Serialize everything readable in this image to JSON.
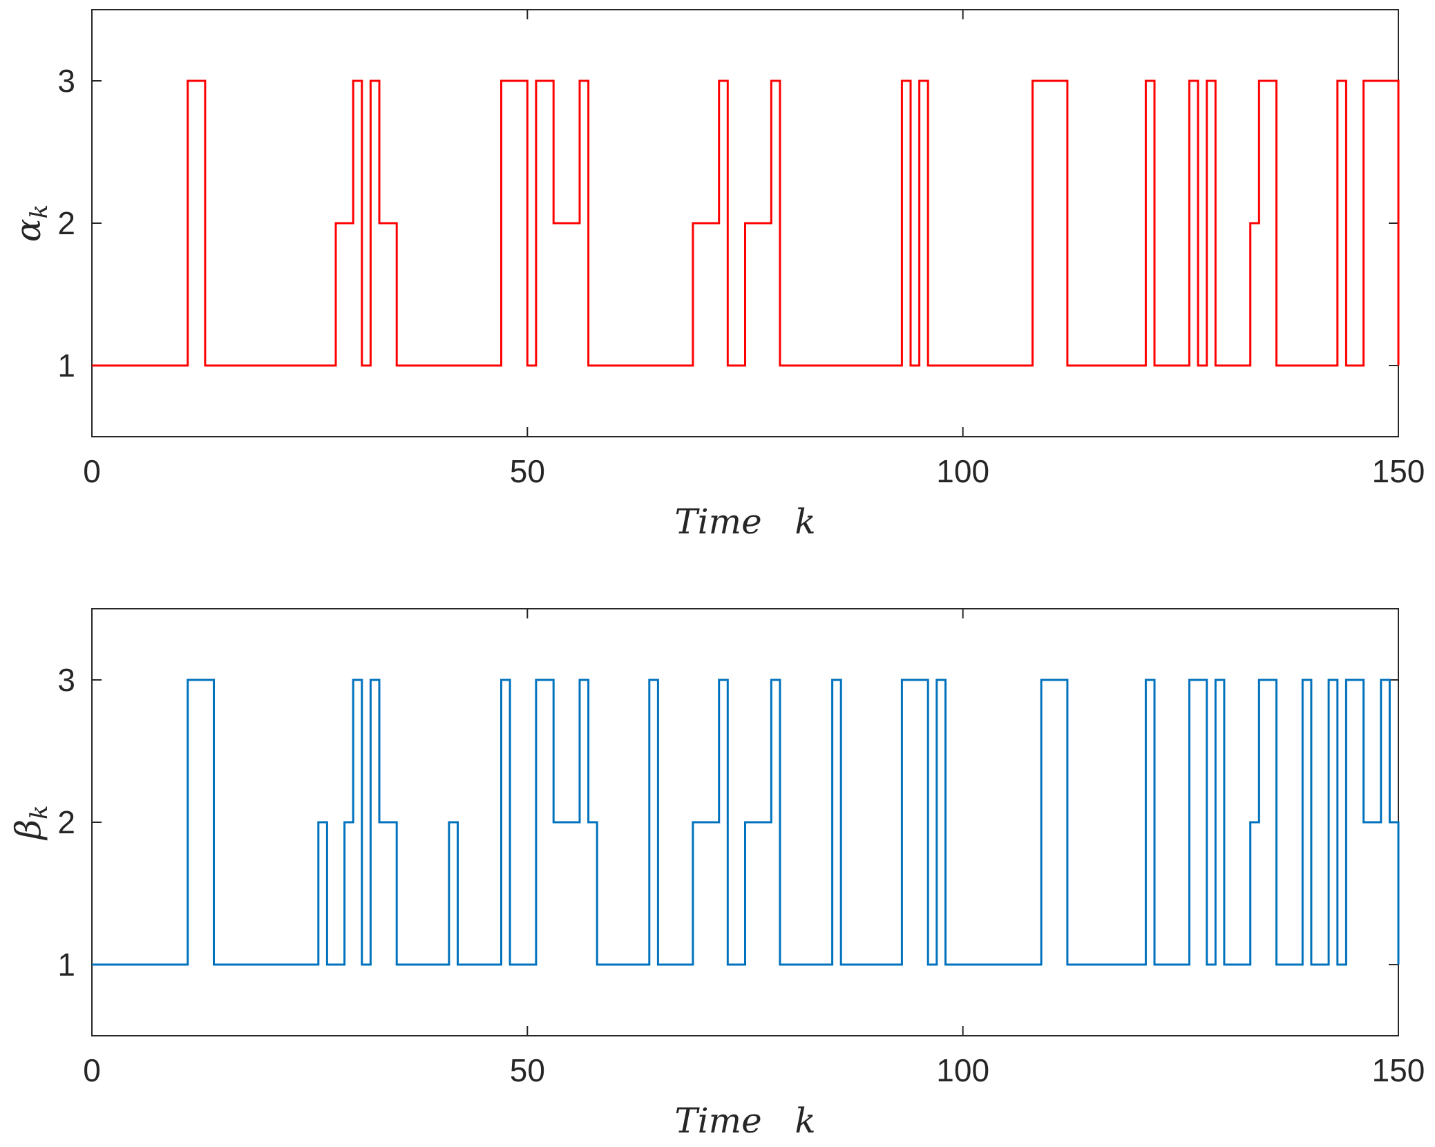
{
  "chart_data": [
    {
      "type": "line",
      "step": true,
      "ylabel": {
        "symbol": "α",
        "subscript": "k"
      },
      "xlabel": "Time   k",
      "xlim": [
        0,
        150
      ],
      "ylim": [
        0.5,
        3.5
      ],
      "xticks": [
        0,
        50,
        100,
        150
      ],
      "yticks": [
        1,
        2,
        3
      ],
      "xtick_labels": [
        "0",
        "50",
        "100",
        "150"
      ],
      "ytick_labels": [
        "1",
        "2",
        "3"
      ],
      "grid": false,
      "series": [
        {
          "color": "#ff0000",
          "x": [
            0,
            11,
            13,
            28,
            30,
            31,
            32,
            33,
            35,
            47,
            50,
            51,
            53,
            56,
            57,
            69,
            72,
            73,
            75,
            78,
            79,
            93,
            94,
            95,
            96,
            108,
            112,
            121,
            122,
            126,
            127,
            128,
            129,
            133,
            134,
            136,
            143,
            144,
            146,
            150
          ],
          "y": [
            1,
            3,
            1,
            2,
            3,
            1,
            3,
            2,
            1,
            3,
            1,
            3,
            2,
            3,
            1,
            2,
            3,
            1,
            2,
            3,
            1,
            3,
            1,
            3,
            1,
            3,
            1,
            3,
            1,
            3,
            1,
            3,
            1,
            2,
            3,
            1,
            3,
            1,
            3,
            1
          ]
        }
      ]
    },
    {
      "type": "line",
      "step": true,
      "ylabel": {
        "symbol": "β",
        "subscript": "k"
      },
      "xlabel": "Time   k",
      "xlim": [
        0,
        150
      ],
      "ylim": [
        0.5,
        3.5
      ],
      "xticks": [
        0,
        50,
        100,
        150
      ],
      "yticks": [
        1,
        2,
        3
      ],
      "xtick_labels": [
        "0",
        "50",
        "100",
        "150"
      ],
      "ytick_labels": [
        "1",
        "2",
        "3"
      ],
      "grid": false,
      "series": [
        {
          "color": "#0072bd",
          "x": [
            0,
            11,
            14,
            26,
            27,
            29,
            30,
            31,
            32,
            33,
            35,
            41,
            42,
            47,
            48,
            51,
            53,
            56,
            57,
            58,
            64,
            65,
            69,
            72,
            73,
            75,
            78,
            79,
            85,
            86,
            93,
            96,
            97,
            98,
            109,
            112,
            121,
            122,
            126,
            128,
            129,
            130,
            133,
            134,
            136,
            139,
            140,
            142,
            143,
            144,
            146,
            148,
            149,
            150
          ],
          "y": [
            1,
            3,
            1,
            2,
            1,
            2,
            3,
            1,
            3,
            2,
            1,
            2,
            1,
            3,
            1,
            3,
            2,
            3,
            2,
            1,
            3,
            1,
            2,
            3,
            1,
            2,
            3,
            1,
            3,
            1,
            3,
            1,
            3,
            1,
            3,
            1,
            3,
            1,
            3,
            1,
            3,
            1,
            2,
            3,
            1,
            3,
            1,
            3,
            1,
            3,
            2,
            3,
            2,
            1
          ]
        }
      ]
    }
  ]
}
